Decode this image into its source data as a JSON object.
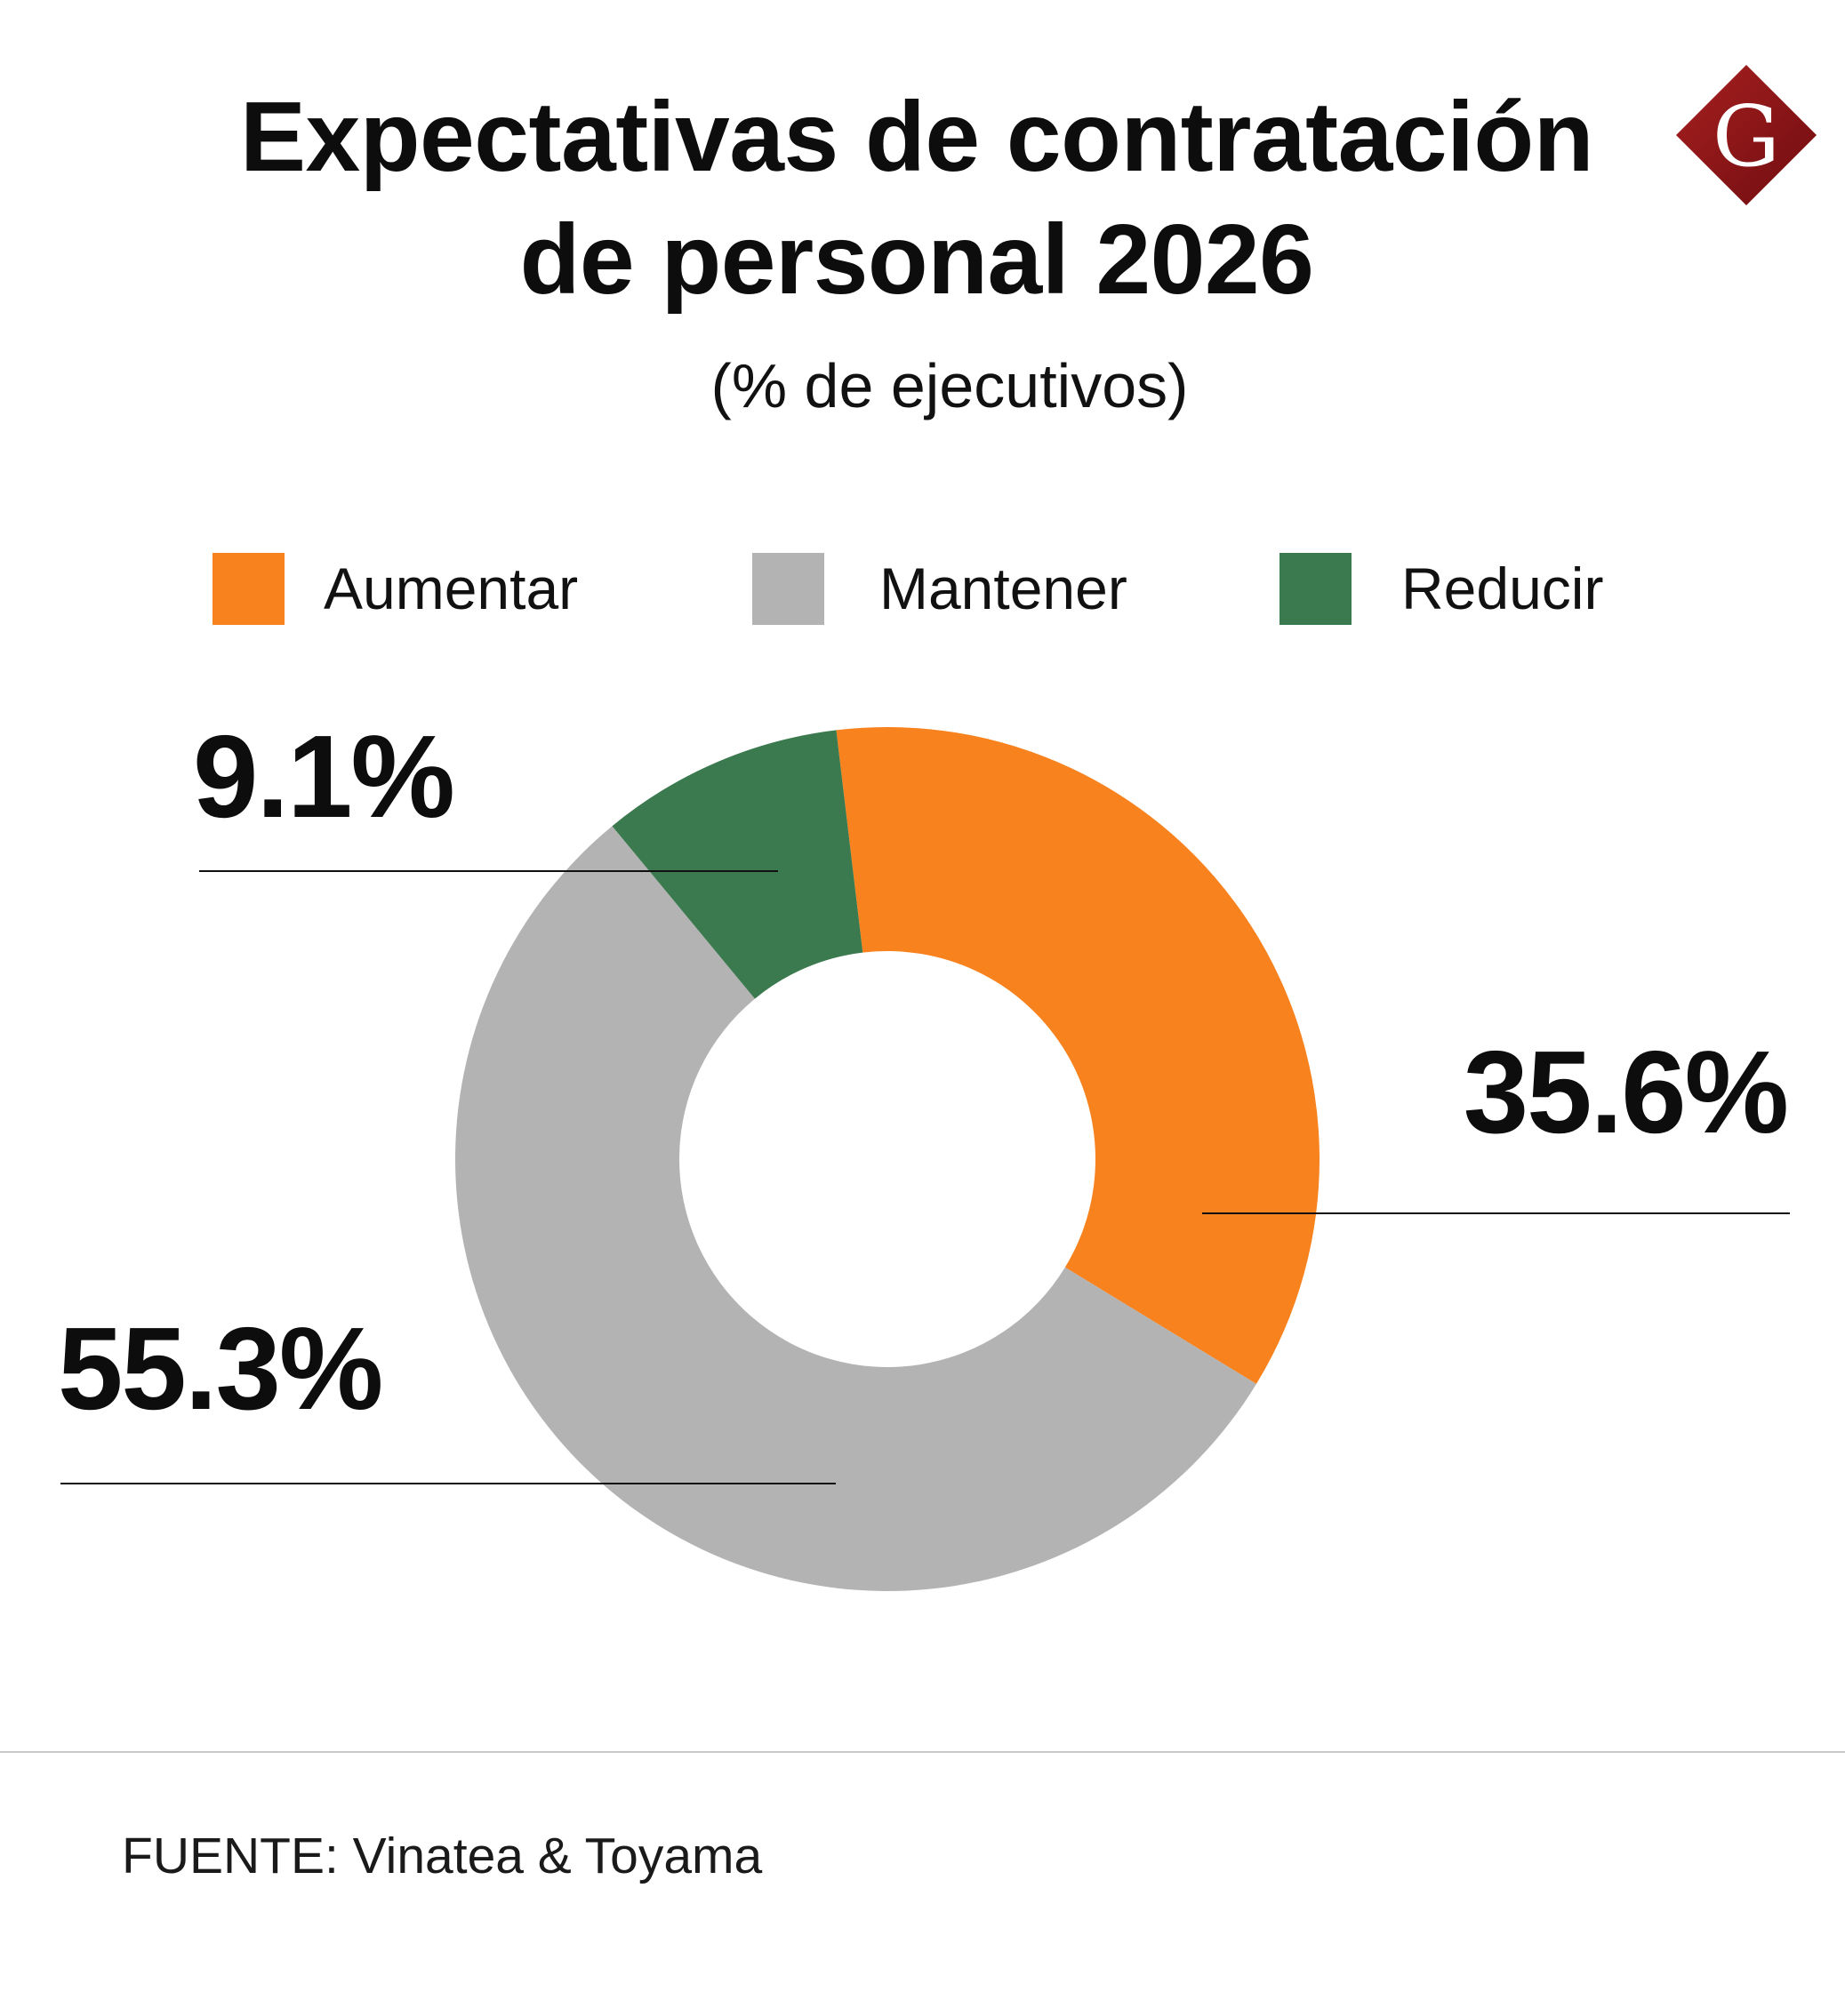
{
  "chart_data": {
    "type": "pie",
    "donut": true,
    "title": "Expectativas de contratación de personal 2026",
    "subtitle": "(% de ejecutivos)",
    "categories": [
      "Aumentar",
      "Mantener",
      "Reducir"
    ],
    "values": [
      35.6,
      55.3,
      9.1
    ],
    "data_labels": [
      "35.6%",
      "55.3%",
      "9.1%"
    ],
    "colors": [
      "#F7821E",
      "#B3B3B3",
      "#3B7A4E"
    ],
    "legend_position": "top"
  },
  "logo": {
    "letter": "G",
    "color": "#8E1417"
  },
  "source": "FUENTE: Vinatea & Toyama"
}
